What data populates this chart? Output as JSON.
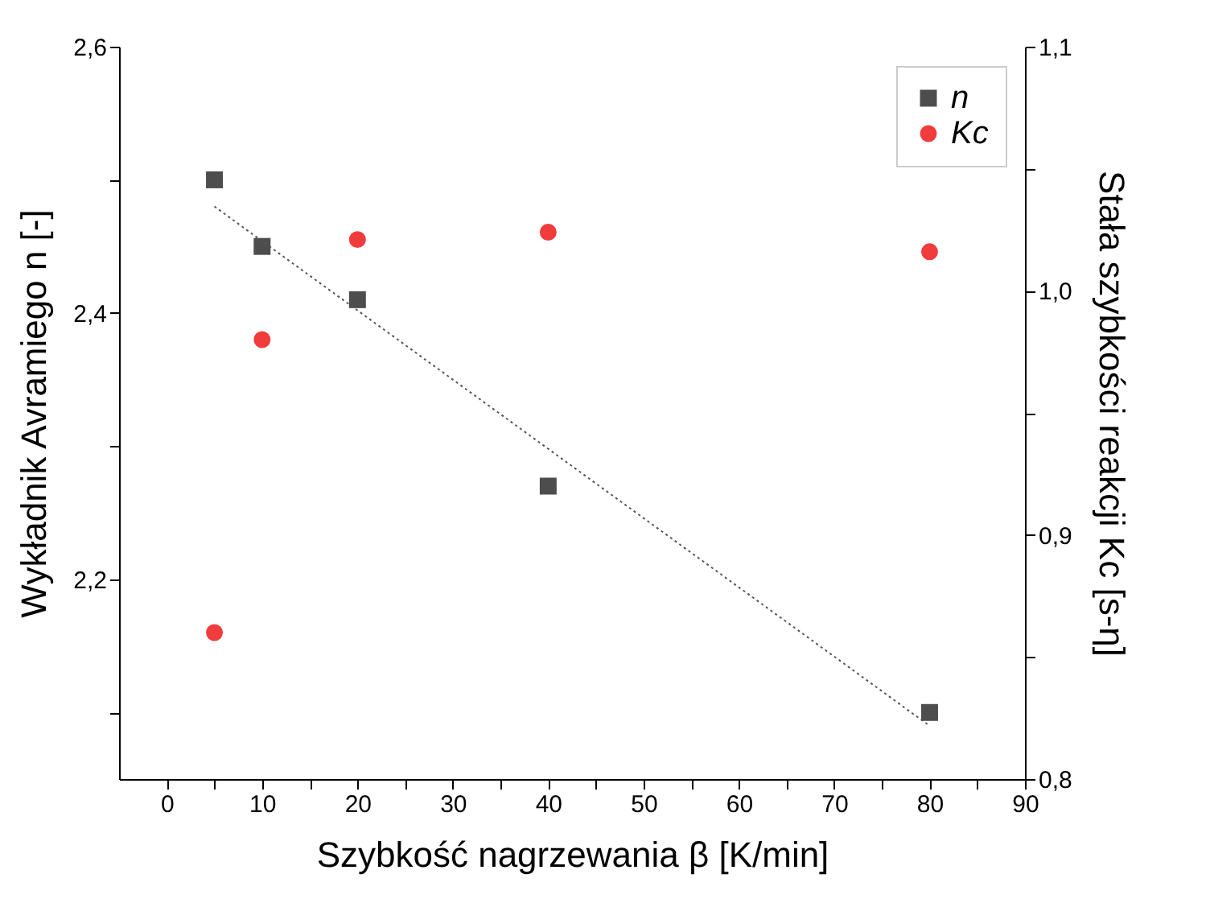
{
  "chart_data": {
    "type": "scatter",
    "xlabel": "Szybkość nagrzewania β [K/min]",
    "ylabel": "Wykładnik Avramiego n [-]",
    "y2label": "Stała szybkości reakcji Kc [s-η]",
    "x": [
      5,
      10,
      20,
      40,
      80
    ],
    "series": [
      {
        "name": "n",
        "color": "#4d4d4d",
        "marker": "square",
        "values": [
          2.5,
          2.45,
          2.41,
          2.27,
          2.1
        ]
      },
      {
        "name": "Kc",
        "color": "#f03c3c",
        "marker": "circle",
        "axis": "y2",
        "values": [
          0.86,
          0.98,
          1.021,
          1.024,
          1.016
        ]
      },
      {
        "type": "line",
        "color": "#555555",
        "line_style": "dotted",
        "x": [
          5,
          80
        ],
        "values": [
          2.48,
          2.09
        ]
      }
    ],
    "xlim": [
      -5,
      90
    ],
    "xticks": [
      0,
      {
        "value": 5,
        "label": null
      },
      10,
      {
        "value": 15,
        "label": null
      },
      20,
      {
        "value": 25,
        "label": null
      },
      30,
      {
        "value": 35,
        "label": null
      },
      40,
      {
        "value": 45,
        "label": null
      },
      50,
      {
        "value": 55,
        "label": null
      },
      60,
      {
        "value": 65,
        "label": null
      },
      70,
      {
        "value": 75,
        "label": null
      },
      80,
      {
        "value": 85,
        "label": null
      },
      90
    ],
    "ylim": [
      2.05,
      2.6
    ],
    "yticks": [
      {
        "value": 2.1,
        "label": null
      },
      {
        "value": 2.2,
        "label": "2,2"
      },
      {
        "value": 2.3,
        "label": null
      },
      {
        "value": 2.4,
        "label": "2,4"
      },
      {
        "value": 2.5,
        "label": null
      },
      {
        "value": 2.6,
        "label": "2,6"
      }
    ],
    "y2lim": [
      0.8,
      1.1
    ],
    "y2ticks": [
      {
        "value": 0.8,
        "label": "0,8"
      },
      {
        "value": 0.85,
        "label": null
      },
      {
        "value": 0.9,
        "label": "0,9"
      },
      {
        "value": 0.95,
        "label": null
      },
      {
        "value": 1.0,
        "label": "1,0"
      },
      {
        "value": 1.05,
        "label": null
      },
      {
        "value": 1.1,
        "label": "1,1"
      }
    ],
    "grid": false,
    "legend": "top right"
  }
}
